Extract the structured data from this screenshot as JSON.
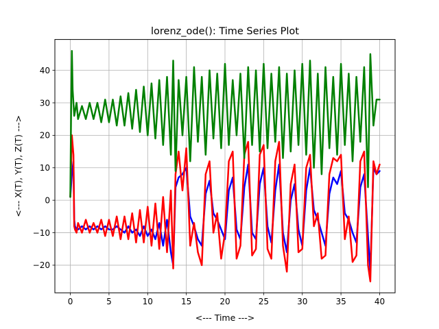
{
  "chart_data": {
    "type": "line",
    "title": "lorenz_ode(): Time Series Plot",
    "xlabel": "<--- Time --->",
    "ylabel": "<--- X(T), Y(T), Z(T) --->",
    "xlim": [
      -2.0,
      42.0
    ],
    "ylim": [
      -28.5,
      49.5
    ],
    "xticks": [
      0,
      5,
      10,
      15,
      20,
      25,
      30,
      35,
      40
    ],
    "xtick_labels": [
      "0",
      "5",
      "10",
      "15",
      "20",
      "25",
      "30",
      "35",
      "40"
    ],
    "yticks": [
      -20,
      -10,
      0,
      10,
      20,
      30,
      40
    ],
    "ytick_labels": [
      "−20",
      "−10",
      "0",
      "10",
      "20",
      "30",
      "40"
    ],
    "grid": true,
    "legend": "none",
    "series": [
      {
        "color": "#0000ff",
        "x": [
          0,
          0.2,
          0.4,
          0.5,
          0.6,
          0.8,
          1.0,
          1.5,
          2.0,
          2.5,
          3.0,
          3.5,
          4.0,
          4.5,
          5.0,
          5.5,
          6.0,
          6.5,
          7.0,
          7.5,
          8.0,
          8.5,
          9.0,
          9.5,
          10.0,
          10.5,
          11.0,
          11.5,
          12.0,
          12.5,
          13.0,
          13.3,
          13.6,
          14.0,
          14.5,
          15.0,
          15.5,
          16.0,
          16.5,
          17.0,
          17.5,
          18.0,
          18.5,
          19.0,
          19.5,
          20.0,
          20.5,
          21.0,
          21.5,
          22.0,
          22.5,
          23.0,
          23.5,
          24.0,
          24.5,
          25.0,
          25.5,
          26.0,
          26.5,
          27.0,
          27.5,
          28.0,
          28.5,
          29.0,
          29.5,
          30.0,
          30.5,
          31.0,
          31.5,
          32.0,
          32.5,
          33.0,
          33.5,
          34.0,
          34.5,
          35.0,
          35.5,
          36.0,
          36.5,
          37.0,
          37.5,
          38.0,
          38.5,
          38.8,
          39.2,
          39.6,
          40.0
        ],
        "values": [
          1,
          8,
          12,
          -6,
          -8,
          -9,
          -9,
          -8,
          -9,
          -8,
          -9,
          -8,
          -9,
          -8,
          -9,
          -9,
          -8,
          -9,
          -10,
          -8,
          -10,
          -9,
          -11,
          -8,
          -11,
          -9,
          -12,
          -7,
          -14,
          -6,
          -16,
          -20,
          4,
          7,
          8,
          10,
          -5,
          -8,
          -12,
          -14,
          2,
          6,
          -4,
          -6,
          -9,
          -12,
          3,
          7,
          -9,
          -12,
          4,
          11,
          -10,
          -12,
          5,
          10,
          -8,
          -13,
          3,
          11,
          -10,
          -16,
          0,
          5,
          -9,
          -14,
          3,
          10,
          -3,
          -6,
          -10,
          -14,
          2,
          7,
          5,
          9,
          -4,
          -6,
          -10,
          -13,
          4,
          8,
          -11,
          -22,
          10,
          8,
          9
        ]
      },
      {
        "color": "#ff0000",
        "x": [
          0,
          0.2,
          0.4,
          0.5,
          0.6,
          0.8,
          1.0,
          1.5,
          2.0,
          2.5,
          3.0,
          3.5,
          4.0,
          4.5,
          5.0,
          5.5,
          6.0,
          6.5,
          7.0,
          7.5,
          8.0,
          8.5,
          9.0,
          9.5,
          10.0,
          10.5,
          11.0,
          11.5,
          12.0,
          12.5,
          13.0,
          13.3,
          13.6,
          14.0,
          14.5,
          15.0,
          15.5,
          16.0,
          16.5,
          17.0,
          17.5,
          18.0,
          18.5,
          19.0,
          19.5,
          20.0,
          20.5,
          21.0,
          21.5,
          22.0,
          22.5,
          23.0,
          23.5,
          24.0,
          24.5,
          25.0,
          25.5,
          26.0,
          26.5,
          27.0,
          27.5,
          28.0,
          28.5,
          29.0,
          29.5,
          30.0,
          30.5,
          31.0,
          31.5,
          32.0,
          32.5,
          33.0,
          33.5,
          34.0,
          34.5,
          35.0,
          35.5,
          36.0,
          36.5,
          37.0,
          37.5,
          38.0,
          38.5,
          38.8,
          39.2,
          39.6,
          40.0
        ],
        "values": [
          1,
          20,
          14,
          -8,
          -9,
          -10,
          -7,
          -10,
          -6,
          -10,
          -7,
          -10,
          -6,
          -11,
          -6,
          -11,
          -5,
          -12,
          -5,
          -12,
          -4,
          -13,
          -3,
          -13,
          -2,
          -14,
          -1,
          -15,
          1,
          -16,
          3,
          -21,
          8,
          15,
          3,
          16,
          -14,
          -7,
          -16,
          -20,
          8,
          12,
          -10,
          -4,
          -18,
          -10,
          12,
          15,
          -18,
          -14,
          14,
          18,
          -17,
          -15,
          14,
          17,
          -15,
          -18,
          12,
          18,
          -14,
          -22,
          5,
          11,
          -16,
          -15,
          10,
          14,
          -8,
          -4,
          -18,
          -17,
          8,
          13,
          12,
          14,
          -12,
          -5,
          -19,
          -17,
          12,
          15,
          -20,
          -25,
          12,
          8,
          11
        ]
      },
      {
        "color": "#008000",
        "x": [
          0,
          0.1,
          0.2,
          0.3,
          0.5,
          0.8,
          1.0,
          1.5,
          2.0,
          2.5,
          3.0,
          3.5,
          4.0,
          4.5,
          5.0,
          5.5,
          6.0,
          6.5,
          7.0,
          7.5,
          8.0,
          8.5,
          9.0,
          9.5,
          10.0,
          10.5,
          11.0,
          11.5,
          12.0,
          12.5,
          13.0,
          13.3,
          13.6,
          14.0,
          14.5,
          15.0,
          15.5,
          16.0,
          16.5,
          17.0,
          17.5,
          18.0,
          18.5,
          19.0,
          19.5,
          20.0,
          20.5,
          21.0,
          21.5,
          22.0,
          22.5,
          23.0,
          23.5,
          24.0,
          24.5,
          25.0,
          25.5,
          26.0,
          26.5,
          27.0,
          27.5,
          28.0,
          28.5,
          29.0,
          29.5,
          30.0,
          30.5,
          31.0,
          31.5,
          32.0,
          32.5,
          33.0,
          33.5,
          34.0,
          34.5,
          35.0,
          35.5,
          36.0,
          36.5,
          37.0,
          37.5,
          38.0,
          38.5,
          38.8,
          39.2,
          39.6,
          40.0
        ],
        "values": [
          1,
          28,
          46,
          34,
          26,
          30,
          25,
          29,
          25,
          30,
          25,
          30,
          24,
          31,
          24,
          31,
          23,
          32,
          23,
          33,
          22,
          34,
          21,
          35,
          20,
          36,
          19,
          37,
          17,
          38,
          14,
          43,
          9,
          37,
          20,
          38,
          12,
          41,
          18,
          38,
          14,
          40,
          19,
          39,
          16,
          42,
          17,
          37,
          20,
          39,
          13,
          41,
          17,
          40,
          15,
          42,
          16,
          39,
          18,
          41,
          13,
          39,
          15,
          40,
          17,
          42,
          14,
          43,
          10,
          39,
          8,
          41,
          16,
          38,
          14,
          42,
          17,
          39,
          12,
          38,
          18,
          41,
          4,
          45,
          23,
          31,
          31
        ]
      }
    ]
  }
}
